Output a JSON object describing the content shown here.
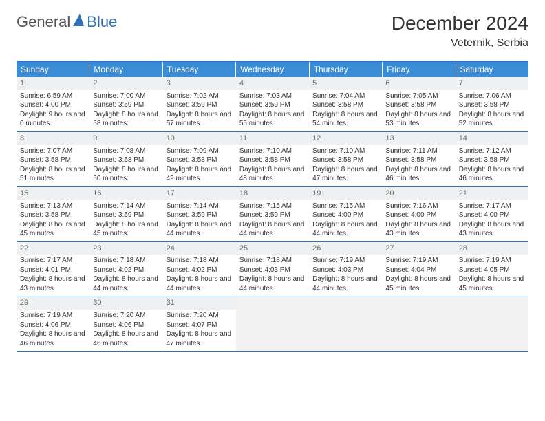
{
  "logo": {
    "part1": "General",
    "part2": "Blue"
  },
  "title": "December 2024",
  "location": "Veternik, Serbia",
  "colors": {
    "accent": "#3072b9",
    "header_bg": "#3b8cd6",
    "daynum_bg": "#eef0f1",
    "empty_bg": "#f2f2f2",
    "text": "#333333",
    "border": "#3072b9"
  },
  "weekdays": [
    "Sunday",
    "Monday",
    "Tuesday",
    "Wednesday",
    "Thursday",
    "Friday",
    "Saturday"
  ],
  "weeks": [
    [
      {
        "n": "1",
        "sunrise": "6:59 AM",
        "sunset": "4:00 PM",
        "day": "9 hours and 0 minutes."
      },
      {
        "n": "2",
        "sunrise": "7:00 AM",
        "sunset": "3:59 PM",
        "day": "8 hours and 58 minutes."
      },
      {
        "n": "3",
        "sunrise": "7:02 AM",
        "sunset": "3:59 PM",
        "day": "8 hours and 57 minutes."
      },
      {
        "n": "4",
        "sunrise": "7:03 AM",
        "sunset": "3:59 PM",
        "day": "8 hours and 55 minutes."
      },
      {
        "n": "5",
        "sunrise": "7:04 AM",
        "sunset": "3:58 PM",
        "day": "8 hours and 54 minutes."
      },
      {
        "n": "6",
        "sunrise": "7:05 AM",
        "sunset": "3:58 PM",
        "day": "8 hours and 53 minutes."
      },
      {
        "n": "7",
        "sunrise": "7:06 AM",
        "sunset": "3:58 PM",
        "day": "8 hours and 52 minutes."
      }
    ],
    [
      {
        "n": "8",
        "sunrise": "7:07 AM",
        "sunset": "3:58 PM",
        "day": "8 hours and 51 minutes."
      },
      {
        "n": "9",
        "sunrise": "7:08 AM",
        "sunset": "3:58 PM",
        "day": "8 hours and 50 minutes."
      },
      {
        "n": "10",
        "sunrise": "7:09 AM",
        "sunset": "3:58 PM",
        "day": "8 hours and 49 minutes."
      },
      {
        "n": "11",
        "sunrise": "7:10 AM",
        "sunset": "3:58 PM",
        "day": "8 hours and 48 minutes."
      },
      {
        "n": "12",
        "sunrise": "7:10 AM",
        "sunset": "3:58 PM",
        "day": "8 hours and 47 minutes."
      },
      {
        "n": "13",
        "sunrise": "7:11 AM",
        "sunset": "3:58 PM",
        "day": "8 hours and 46 minutes."
      },
      {
        "n": "14",
        "sunrise": "7:12 AM",
        "sunset": "3:58 PM",
        "day": "8 hours and 46 minutes."
      }
    ],
    [
      {
        "n": "15",
        "sunrise": "7:13 AM",
        "sunset": "3:58 PM",
        "day": "8 hours and 45 minutes."
      },
      {
        "n": "16",
        "sunrise": "7:14 AM",
        "sunset": "3:59 PM",
        "day": "8 hours and 45 minutes."
      },
      {
        "n": "17",
        "sunrise": "7:14 AM",
        "sunset": "3:59 PM",
        "day": "8 hours and 44 minutes."
      },
      {
        "n": "18",
        "sunrise": "7:15 AM",
        "sunset": "3:59 PM",
        "day": "8 hours and 44 minutes."
      },
      {
        "n": "19",
        "sunrise": "7:15 AM",
        "sunset": "4:00 PM",
        "day": "8 hours and 44 minutes."
      },
      {
        "n": "20",
        "sunrise": "7:16 AM",
        "sunset": "4:00 PM",
        "day": "8 hours and 43 minutes."
      },
      {
        "n": "21",
        "sunrise": "7:17 AM",
        "sunset": "4:00 PM",
        "day": "8 hours and 43 minutes."
      }
    ],
    [
      {
        "n": "22",
        "sunrise": "7:17 AM",
        "sunset": "4:01 PM",
        "day": "8 hours and 43 minutes."
      },
      {
        "n": "23",
        "sunrise": "7:18 AM",
        "sunset": "4:02 PM",
        "day": "8 hours and 44 minutes."
      },
      {
        "n": "24",
        "sunrise": "7:18 AM",
        "sunset": "4:02 PM",
        "day": "8 hours and 44 minutes."
      },
      {
        "n": "25",
        "sunrise": "7:18 AM",
        "sunset": "4:03 PM",
        "day": "8 hours and 44 minutes."
      },
      {
        "n": "26",
        "sunrise": "7:19 AM",
        "sunset": "4:03 PM",
        "day": "8 hours and 44 minutes."
      },
      {
        "n": "27",
        "sunrise": "7:19 AM",
        "sunset": "4:04 PM",
        "day": "8 hours and 45 minutes."
      },
      {
        "n": "28",
        "sunrise": "7:19 AM",
        "sunset": "4:05 PM",
        "day": "8 hours and 45 minutes."
      }
    ],
    [
      {
        "n": "29",
        "sunrise": "7:19 AM",
        "sunset": "4:06 PM",
        "day": "8 hours and 46 minutes."
      },
      {
        "n": "30",
        "sunrise": "7:20 AM",
        "sunset": "4:06 PM",
        "day": "8 hours and 46 minutes."
      },
      {
        "n": "31",
        "sunrise": "7:20 AM",
        "sunset": "4:07 PM",
        "day": "8 hours and 47 minutes."
      },
      null,
      null,
      null,
      null
    ]
  ],
  "labels": {
    "sunrise": "Sunrise:",
    "sunset": "Sunset:",
    "daylight": "Daylight:"
  }
}
